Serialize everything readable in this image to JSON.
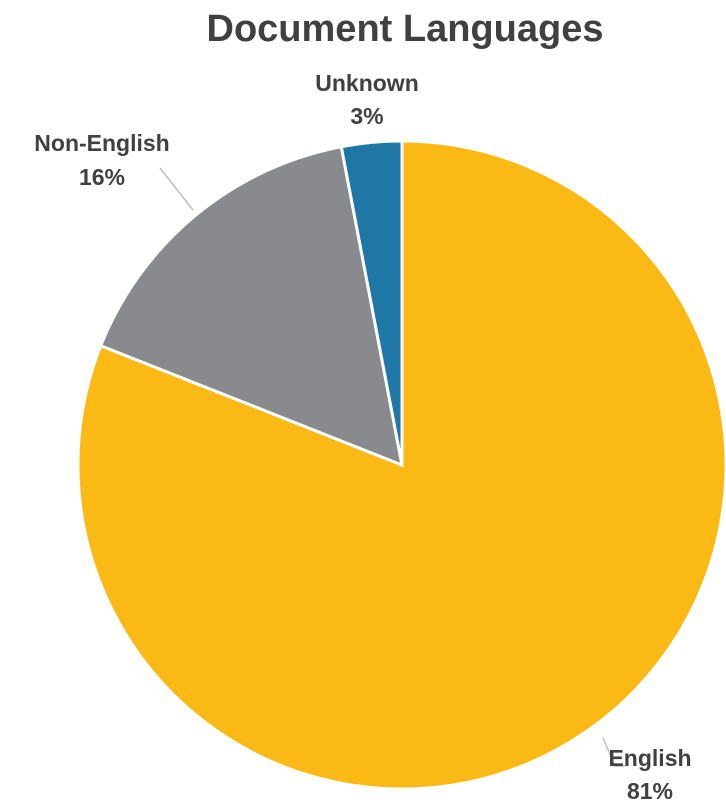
{
  "chart_data": {
    "type": "pie",
    "title": "Document Languages",
    "slices": [
      {
        "label": "English",
        "value": 81,
        "display": "81%",
        "color": "#FBB916"
      },
      {
        "label": "Non-English",
        "value": 16,
        "display": "16%",
        "color": "#898A8D"
      },
      {
        "label": "Unknown",
        "value": 3,
        "display": "3%",
        "color": "#1F77A5"
      }
    ],
    "start_angle": "12 o'clock",
    "direction": "clockwise",
    "legend": "none"
  }
}
